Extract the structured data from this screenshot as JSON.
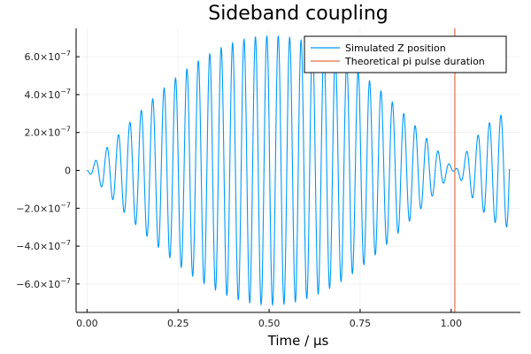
{
  "chart_data": {
    "type": "line",
    "title": "Sideband coupling",
    "xlabel": "Time / μs",
    "ylabel": "",
    "xlim": [
      -0.03,
      1.19
    ],
    "ylim": [
      -7.5e-07,
      7.5e-07
    ],
    "x_ticks": [
      {
        "value": 0.0,
        "label": "0.00"
      },
      {
        "value": 0.25,
        "label": "0.25"
      },
      {
        "value": 0.5,
        "label": "0.50"
      },
      {
        "value": 0.75,
        "label": "0.75"
      },
      {
        "value": 1.0,
        "label": "1.00"
      }
    ],
    "y_ticks": [
      {
        "value": -6e-07,
        "label": "−6.0×10",
        "exp": "−7"
      },
      {
        "value": -4e-07,
        "label": "−4.0×10",
        "exp": "−7"
      },
      {
        "value": -2e-07,
        "label": "−2.0×10",
        "exp": "−7"
      },
      {
        "value": 0,
        "label": "0",
        "exp": ""
      },
      {
        "value": 2e-07,
        "label": "2.0×10",
        "exp": "−7"
      },
      {
        "value": 4e-07,
        "label": "4.0×10",
        "exp": "−7"
      },
      {
        "value": 6e-07,
        "label": "6.0×10",
        "exp": "−7"
      }
    ],
    "grid": true,
    "legend_position": "top-right",
    "series": [
      {
        "name": "Simulated Z position",
        "color": "#009AFA",
        "kind": "oscillation",
        "x_range": [
          0.0,
          1.16
        ],
        "carrier_frequency_per_us": 31.9,
        "envelope_amplitude": 7.1e-07,
        "envelope_zero_at": 1.01,
        "envelope_amplitude_beyond": 3e-07
      },
      {
        "name": "Theoretical pi pulse duration",
        "color": "#E26F46",
        "kind": "vline",
        "x": 1.01
      }
    ]
  }
}
